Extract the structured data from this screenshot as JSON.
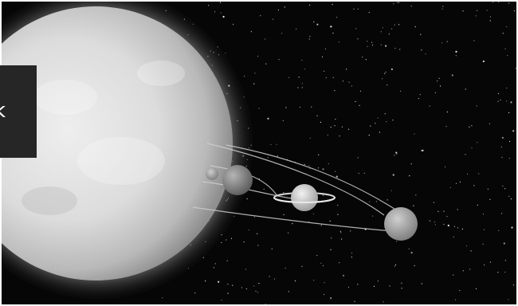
{
  "image": {
    "subject": "solar-system-illustration",
    "palette": {
      "space": "#060606",
      "sun": "#d9d9d9",
      "orbit": "#cfcfcf",
      "tab_bg": "#262626",
      "tab_text": "#ffffff"
    }
  },
  "overlay": {
    "glyph": "k"
  }
}
